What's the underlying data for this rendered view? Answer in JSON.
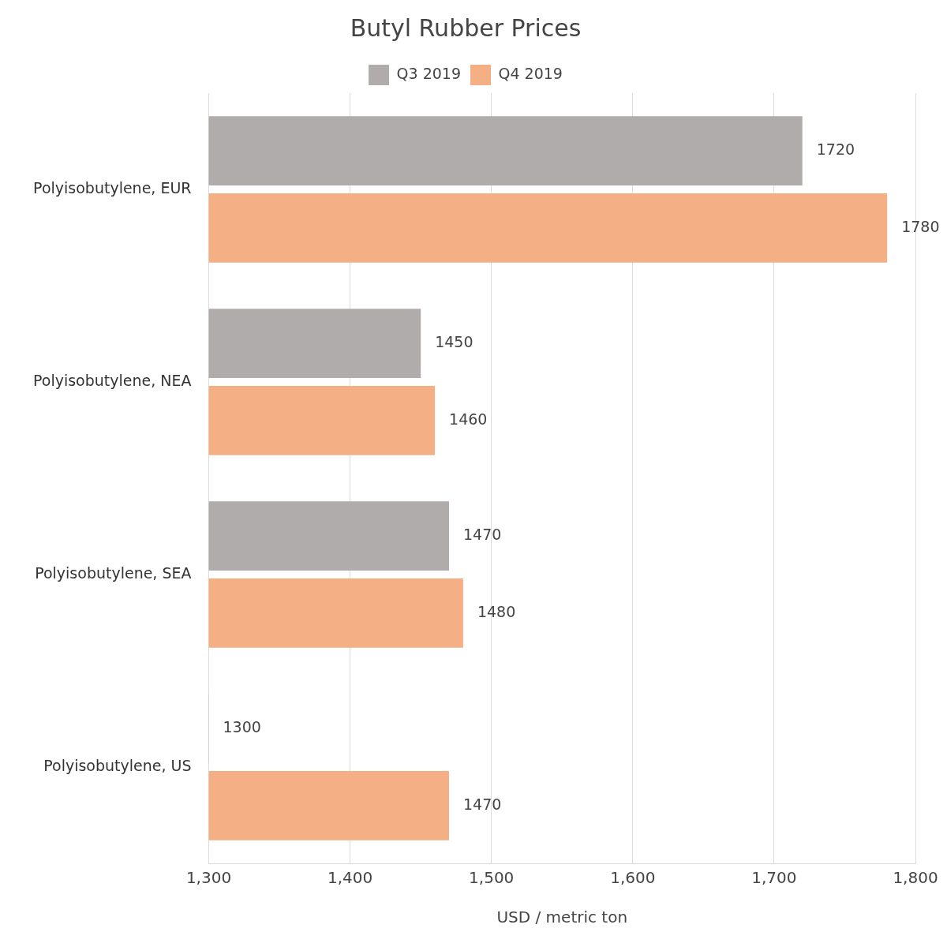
{
  "chart_data": {
    "type": "bar",
    "orientation": "horizontal",
    "title": "Butyl Rubber Prices",
    "xlabel": "USD / metric ton",
    "categories": [
      "Polyisobutylene, EUR",
      "Polyisobutylene, NEA",
      "Polyisobutylene, SEA",
      "Polyisobutylene, US"
    ],
    "series": [
      {
        "name": "Q3 2019",
        "color": "#b0acab",
        "values": [
          1720,
          1450,
          1470,
          1300
        ]
      },
      {
        "name": "Q4 2019",
        "color": "#f4b084",
        "values": [
          1780,
          1460,
          1480,
          1470
        ]
      }
    ],
    "xlim": [
      1300,
      1800
    ],
    "xticks": [
      {
        "value": 1300,
        "label": "1,300"
      },
      {
        "value": 1400,
        "label": "1,400"
      },
      {
        "value": 1500,
        "label": "1,500"
      },
      {
        "value": 1600,
        "label": "1,600"
      },
      {
        "value": 1700,
        "label": "1,700"
      },
      {
        "value": 1800,
        "label": "1,800"
      }
    ],
    "grid": "x",
    "legend": "top",
    "data_labels": true
  }
}
